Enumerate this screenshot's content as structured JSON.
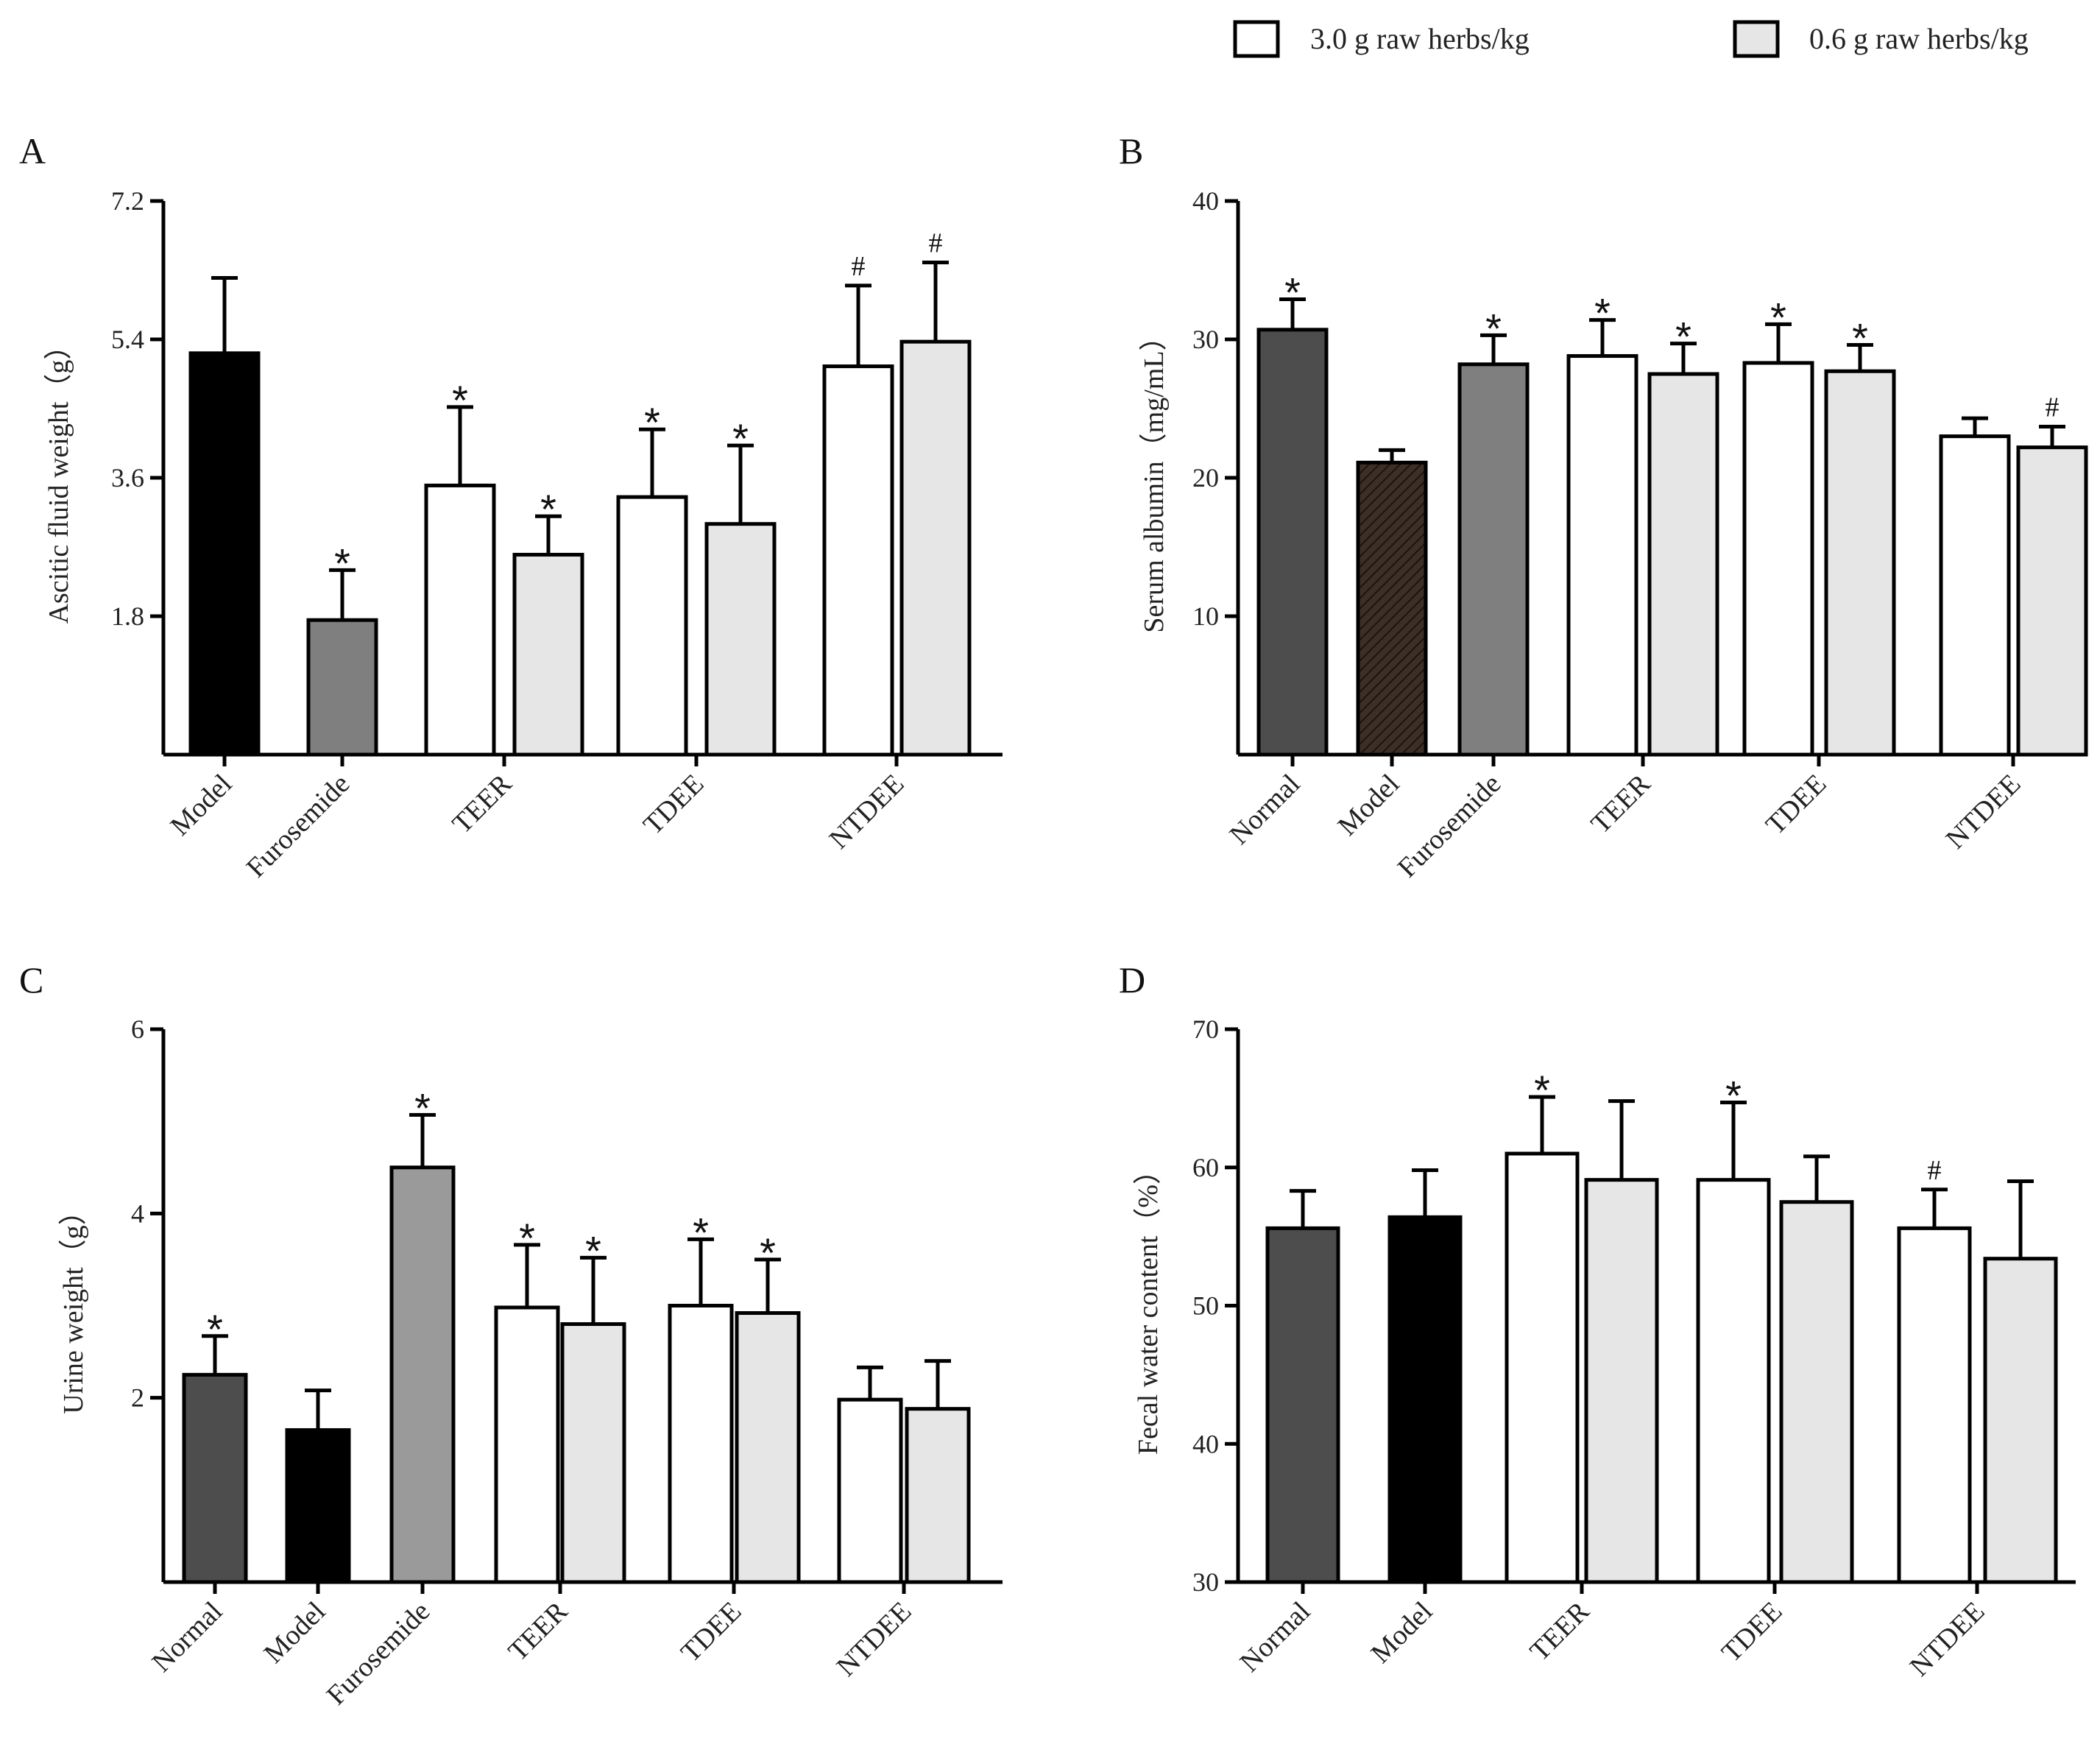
{
  "legend": {
    "items": [
      {
        "label": "3.0 g raw herbs/kg",
        "color": "#ffffff"
      },
      {
        "label": "0.6 g raw herbs/kg",
        "color": "#e6e6e6"
      }
    ]
  },
  "chart_data": [
    {
      "panel": "A",
      "type": "bar",
      "ylabel": "Ascitic fluid weight（g）",
      "ylim": [
        0,
        7.2
      ],
      "yticks": [
        "1.8",
        "3.6",
        "5.4",
        "7.2"
      ],
      "categories": [
        "Model",
        "Furosemide",
        "TEER",
        "TDEE",
        "NTDEE"
      ],
      "bars": [
        {
          "category": "Model",
          "value": 5.22,
          "error": 0.98,
          "color": "#000000",
          "sig": ""
        },
        {
          "category": "Furosemide",
          "value": 1.75,
          "error": 0.65,
          "color": "#7f7f7f",
          "sig": "*"
        },
        {
          "category": "TEER",
          "dose": "3.0 g raw herbs/kg",
          "value": 3.5,
          "error": 1.02,
          "color": "#ffffff",
          "sig": "*"
        },
        {
          "category": "TEER",
          "dose": "0.6 g raw herbs/kg",
          "value": 2.6,
          "error": 0.5,
          "color": "#e6e6e6",
          "sig": "*"
        },
        {
          "category": "TDEE",
          "dose": "3.0 g raw herbs/kg",
          "value": 3.35,
          "error": 0.88,
          "color": "#ffffff",
          "sig": "*"
        },
        {
          "category": "TDEE",
          "dose": "0.6 g raw herbs/kg",
          "value": 3.0,
          "error": 1.02,
          "color": "#e6e6e6",
          "sig": "*"
        },
        {
          "category": "NTDEE",
          "dose": "3.0 g raw herbs/kg",
          "value": 5.05,
          "error": 1.05,
          "color": "#ffffff",
          "sig": "#"
        },
        {
          "category": "NTDEE",
          "dose": "0.6 g raw herbs/kg",
          "value": 5.37,
          "error": 1.03,
          "color": "#e6e6e6",
          "sig": "#"
        }
      ]
    },
    {
      "panel": "B",
      "type": "bar",
      "ylabel": "Serum albumin（mg/mL）",
      "ylim": [
        0,
        40
      ],
      "yticks": [
        "10",
        "20",
        "30",
        "40"
      ],
      "categories": [
        "Normal",
        "Model",
        "Furosemide",
        "TEER",
        "TDEE",
        "NTDEE"
      ],
      "bars": [
        {
          "category": "Normal",
          "value": 30.7,
          "error": 2.2,
          "color": "#4d4d4d",
          "sig": "*"
        },
        {
          "category": "Model",
          "value": 21.1,
          "error": 0.9,
          "color": "#3d2e26",
          "hatch": true,
          "sig": ""
        },
        {
          "category": "Furosemide",
          "value": 28.2,
          "error": 2.1,
          "color": "#7f7f7f",
          "sig": "*"
        },
        {
          "category": "TEER",
          "dose": "3.0 g raw herbs/kg",
          "value": 28.8,
          "error": 2.6,
          "color": "#ffffff",
          "sig": "*"
        },
        {
          "category": "TEER",
          "dose": "0.6 g raw herbs/kg",
          "value": 27.5,
          "error": 2.2,
          "color": "#e6e6e6",
          "sig": "*"
        },
        {
          "category": "TDEE",
          "dose": "3.0 g raw herbs/kg",
          "value": 28.3,
          "error": 2.8,
          "color": "#ffffff",
          "sig": "*"
        },
        {
          "category": "TDEE",
          "dose": "0.6 g raw herbs/kg",
          "value": 27.7,
          "error": 1.9,
          "color": "#e6e6e6",
          "sig": "*"
        },
        {
          "category": "NTDEE",
          "dose": "3.0 g raw herbs/kg",
          "value": 23.0,
          "error": 1.3,
          "color": "#ffffff",
          "sig": ""
        },
        {
          "category": "NTDEE",
          "dose": "0.6 g raw herbs/kg",
          "value": 22.2,
          "error": 1.5,
          "color": "#e6e6e6",
          "sig": "#"
        }
      ]
    },
    {
      "panel": "C",
      "type": "bar",
      "ylabel": "Urine weight（g）",
      "ylim": [
        0,
        6
      ],
      "yticks": [
        "2",
        "4",
        "6"
      ],
      "categories": [
        "Normal",
        "Model",
        "Furosemide",
        "TEER",
        "TDEE",
        "NTDEE"
      ],
      "bars": [
        {
          "category": "Normal",
          "value": 2.25,
          "error": 0.42,
          "color": "#4d4d4d",
          "sig": "*"
        },
        {
          "category": "Model",
          "value": 1.65,
          "error": 0.43,
          "color": "#000000",
          "sig": ""
        },
        {
          "category": "Furosemide",
          "value": 4.5,
          "error": 0.57,
          "color": "#9a9a9a",
          "sig": "*"
        },
        {
          "category": "TEER",
          "dose": "3.0 g raw herbs/kg",
          "value": 2.98,
          "error": 0.68,
          "color": "#ffffff",
          "sig": "*"
        },
        {
          "category": "TEER",
          "dose": "0.6 g raw herbs/kg",
          "value": 2.8,
          "error": 0.72,
          "color": "#e6e6e6",
          "sig": "*"
        },
        {
          "category": "TDEE",
          "dose": "3.0 g raw herbs/kg",
          "value": 3.0,
          "error": 0.72,
          "color": "#ffffff",
          "sig": "*"
        },
        {
          "category": "TDEE",
          "dose": "0.6 g raw herbs/kg",
          "value": 2.92,
          "error": 0.58,
          "color": "#e6e6e6",
          "sig": "*"
        },
        {
          "category": "NTDEE",
          "dose": "3.0 g raw herbs/kg",
          "value": 1.98,
          "error": 0.35,
          "color": "#ffffff",
          "sig": ""
        },
        {
          "category": "NTDEE",
          "dose": "0.6 g raw herbs/kg",
          "value": 1.88,
          "error": 0.52,
          "color": "#e6e6e6",
          "sig": ""
        }
      ]
    },
    {
      "panel": "D",
      "type": "bar",
      "ylabel": "Fecal water content（%）",
      "ylim": [
        30,
        70
      ],
      "yticks": [
        "30",
        "40",
        "50",
        "60",
        "70"
      ],
      "categories": [
        "Normal",
        "Model",
        "TEER",
        "TDEE",
        "NTDEE"
      ],
      "bars": [
        {
          "category": "Normal",
          "value": 55.6,
          "error": 2.7,
          "color": "#4d4d4d",
          "sig": ""
        },
        {
          "category": "Model",
          "value": 56.4,
          "error": 3.4,
          "color": "#000000",
          "sig": ""
        },
        {
          "category": "TEER",
          "dose": "3.0 g raw herbs/kg",
          "value": 61.0,
          "error": 4.1,
          "color": "#ffffff",
          "sig": "*"
        },
        {
          "category": "TEER",
          "dose": "0.6 g raw herbs/kg",
          "value": 59.1,
          "error": 5.7,
          "color": "#e6e6e6",
          "sig": ""
        },
        {
          "category": "TDEE",
          "dose": "3.0 g raw herbs/kg",
          "value": 59.1,
          "error": 5.6,
          "color": "#ffffff",
          "sig": "*"
        },
        {
          "category": "TDEE",
          "dose": "0.6 g raw herbs/kg",
          "value": 57.5,
          "error": 3.3,
          "color": "#e6e6e6",
          "sig": ""
        },
        {
          "category": "NTDEE",
          "dose": "3.0 g raw herbs/kg",
          "value": 55.6,
          "error": 2.8,
          "color": "#ffffff",
          "sig": "#"
        },
        {
          "category": "NTDEE",
          "dose": "0.6 g raw herbs/kg",
          "value": 53.4,
          "error": 5.6,
          "color": "#e6e6e6",
          "sig": ""
        }
      ]
    }
  ]
}
